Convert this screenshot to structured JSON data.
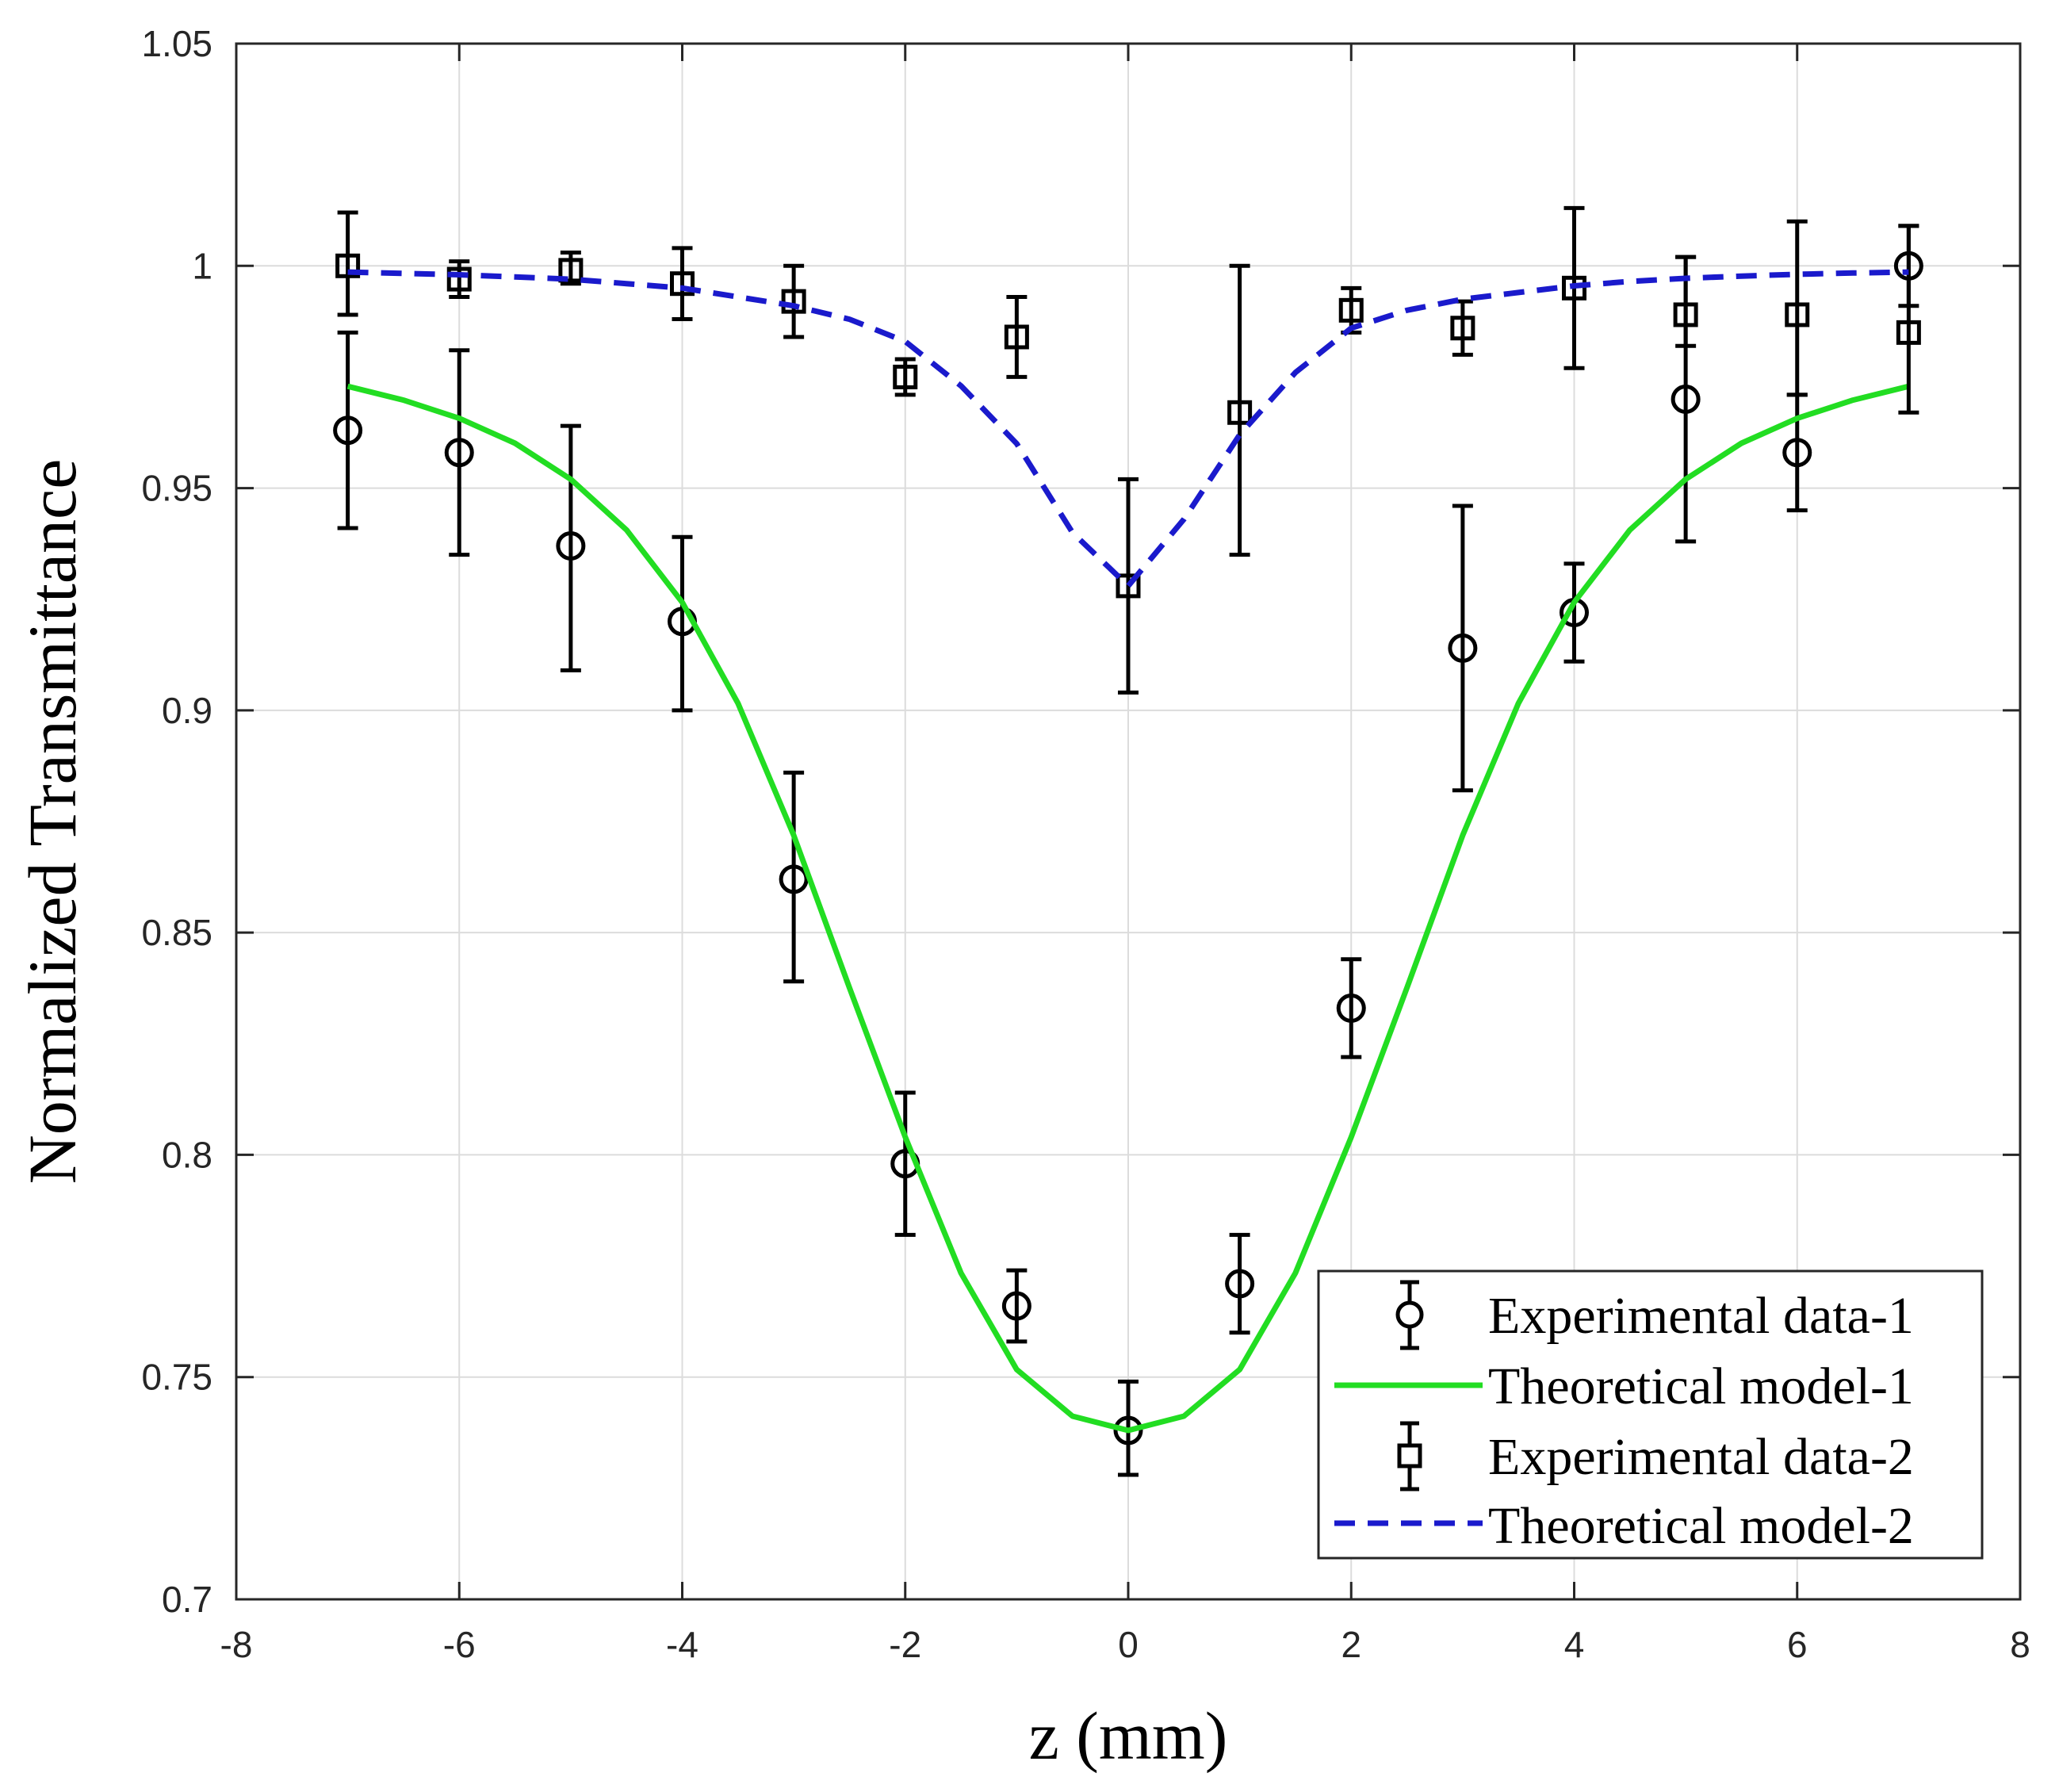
{
  "chart_data": {
    "type": "scatter",
    "title": "",
    "xlabel": "z (mm)",
    "ylabel": "Normalized Transmittance",
    "xlim": [
      -8,
      8
    ],
    "ylim": [
      0.7,
      1.05
    ],
    "xticks": [
      -8,
      -6,
      -4,
      -2,
      0,
      2,
      4,
      6,
      8
    ],
    "xtick_labels": [
      "-8",
      "-6",
      "-4",
      "-2",
      "0",
      "2",
      "4",
      "6",
      "8"
    ],
    "yticks": [
      0.7,
      0.75,
      0.8,
      0.85,
      0.9,
      0.95,
      1.0,
      1.05
    ],
    "ytick_labels": [
      "0.7",
      "0.75",
      "0.8",
      "0.85",
      "0.9",
      "0.95",
      "1",
      "1.05"
    ],
    "grid": true,
    "legend_position": "bottom-right",
    "series": [
      {
        "name": "Experimental data-1",
        "kind": "errorbar",
        "marker": "circle",
        "color": "#000000",
        "x": [
          -7,
          -6,
          -5,
          -4,
          -3,
          -2,
          -1,
          0,
          1,
          2,
          3,
          4,
          5,
          6,
          7
        ],
        "y": [
          0.963,
          0.958,
          0.937,
          0.92,
          0.862,
          0.798,
          0.766,
          0.738,
          0.771,
          0.833,
          0.914,
          0.922,
          0.97,
          0.958,
          1.0
        ],
        "err_low": [
          0.022,
          0.023,
          0.028,
          0.02,
          0.023,
          0.016,
          0.008,
          0.01,
          0.011,
          0.011,
          0.032,
          0.011,
          0.032,
          0.013,
          0.009
        ],
        "err_high": [
          0.022,
          0.023,
          0.027,
          0.019,
          0.024,
          0.016,
          0.008,
          0.011,
          0.011,
          0.011,
          0.032,
          0.011,
          0.032,
          0.013,
          0.009
        ]
      },
      {
        "name": "Theoretical model-1",
        "kind": "line",
        "line_style": "solid",
        "color": "#22dd22",
        "x": [
          -7,
          -6.5,
          -6,
          -5.5,
          -5,
          -4.5,
          -4,
          -3.5,
          -3,
          -2.5,
          -2,
          -1.5,
          -1,
          -0.5,
          0,
          0.5,
          1,
          1.5,
          2,
          2.5,
          3,
          3.5,
          4,
          4.5,
          5,
          5.5,
          6,
          6.5,
          7
        ],
        "y": [
          0.9729,
          0.9698,
          0.9657,
          0.9601,
          0.952,
          0.9406,
          0.9243,
          0.9016,
          0.8719,
          0.8376,
          0.804,
          0.7734,
          0.7517,
          0.7412,
          0.738,
          0.7412,
          0.7517,
          0.7734,
          0.804,
          0.8376,
          0.8719,
          0.9016,
          0.9243,
          0.9406,
          0.952,
          0.9601,
          0.9657,
          0.9698,
          0.9729
        ]
      },
      {
        "name": "Experimental data-2",
        "kind": "errorbar",
        "marker": "square",
        "color": "#000000",
        "x": [
          -7,
          -6,
          -5,
          -4,
          -3,
          -2,
          -1,
          0,
          1,
          2,
          3,
          4,
          5,
          6,
          7
        ],
        "y": [
          1.0,
          0.997,
          0.999,
          0.996,
          0.992,
          0.975,
          0.984,
          0.928,
          0.967,
          0.99,
          0.986,
          0.995,
          0.989,
          0.989,
          0.985
        ],
        "err_low": [
          0.011,
          0.004,
          0.003,
          0.008,
          0.008,
          0.004,
          0.009,
          0.024,
          0.032,
          0.005,
          0.006,
          0.018,
          0.007,
          0.018,
          0.018
        ],
        "err_high": [
          0.012,
          0.004,
          0.004,
          0.008,
          0.008,
          0.004,
          0.009,
          0.024,
          0.033,
          0.005,
          0.006,
          0.018,
          0.013,
          0.021,
          0.024
        ]
      },
      {
        "name": "Theoretical model-2",
        "kind": "line",
        "line_style": "dashed",
        "color": "#1a1acc",
        "x": [
          -7,
          -6.5,
          -6,
          -5.5,
          -5,
          -4.5,
          -4,
          -3.5,
          -3,
          -2.5,
          -2,
          -1.5,
          -1,
          -0.5,
          0,
          0.5,
          1,
          1.5,
          2,
          2.5,
          3,
          3.5,
          4,
          4.5,
          5,
          5.5,
          6,
          6.5,
          7
        ],
        "y": [
          0.9986,
          0.9983,
          0.998,
          0.9975,
          0.997,
          0.996,
          0.995,
          0.993,
          0.991,
          0.988,
          0.983,
          0.973,
          0.96,
          0.94,
          0.928,
          0.943,
          0.962,
          0.976,
          0.986,
          0.99,
          0.9925,
          0.994,
          0.9955,
          0.9965,
          0.9972,
          0.9977,
          0.9981,
          0.9984,
          0.9986
        ]
      }
    ]
  }
}
